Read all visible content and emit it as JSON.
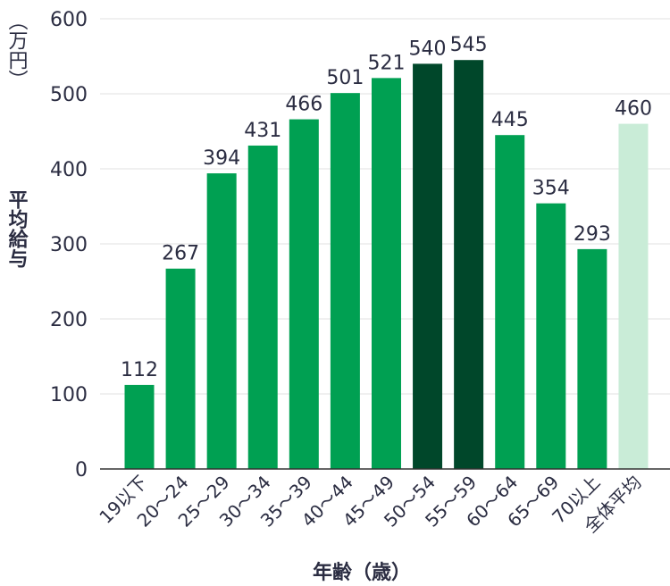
{
  "chart_data": {
    "type": "bar",
    "unit_label": "（万円）",
    "ylabel": "平均給与",
    "xlabel": "年齢（歳）",
    "ylim": [
      0,
      600
    ],
    "yticks": [
      0,
      100,
      200,
      300,
      400,
      500,
      600
    ],
    "grid": true,
    "categories": [
      "19以下",
      "20〜24",
      "25〜29",
      "30〜34",
      "35〜39",
      "40〜44",
      "45〜49",
      "50〜54",
      "55〜59",
      "60〜64",
      "65〜69",
      "70以上",
      "全体平均"
    ],
    "values": [
      112,
      267,
      394,
      431,
      466,
      501,
      521,
      540,
      545,
      445,
      354,
      293,
      460
    ],
    "colors": {
      "normal": "#00a052",
      "highlight": "#00472a",
      "average": "#c9ecd7",
      "grid": "#e2e2e2",
      "axis": "#333333"
    },
    "highlight_categories": [
      "50〜54",
      "55〜59"
    ],
    "average_category": "全体平均"
  }
}
